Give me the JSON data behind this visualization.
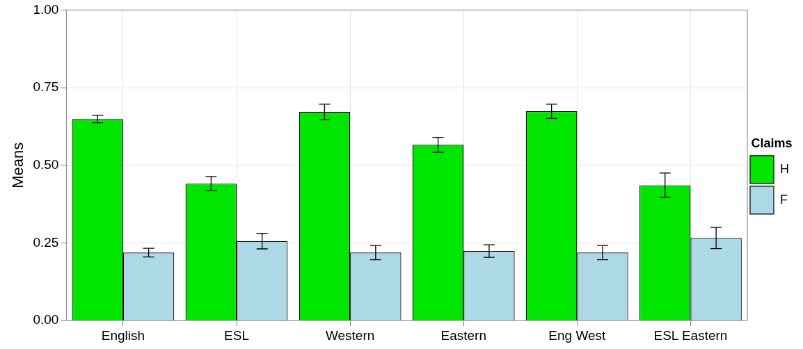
{
  "chart_data": {
    "type": "bar",
    "ylabel": "Means",
    "legend_title": "Claims",
    "legend": "right",
    "grid": true,
    "categories": [
      "English",
      "ESL",
      "Western",
      "Eastern",
      "Eng West",
      "ESL Eastern"
    ],
    "series": [
      {
        "name": "H",
        "color": "#00e600",
        "values": [
          0.649,
          0.441,
          0.672,
          0.566,
          0.674,
          0.436
        ],
        "errors": [
          0.012,
          0.023,
          0.025,
          0.024,
          0.023,
          0.039
        ]
      },
      {
        "name": "F",
        "color": "#add8e6",
        "values": [
          0.219,
          0.256,
          0.219,
          0.224,
          0.219,
          0.266
        ],
        "errors": [
          0.014,
          0.025,
          0.023,
          0.02,
          0.023,
          0.034
        ]
      }
    ],
    "ylim": [
      0,
      1
    ],
    "yticks": [
      {
        "value": 0,
        "label": "0.00"
      },
      {
        "value": 0.25,
        "label": "0.25"
      },
      {
        "value": 0.5,
        "label": "0.50"
      },
      {
        "value": 0.75,
        "label": "0.75"
      },
      {
        "value": 1,
        "label": "1.00"
      }
    ]
  }
}
